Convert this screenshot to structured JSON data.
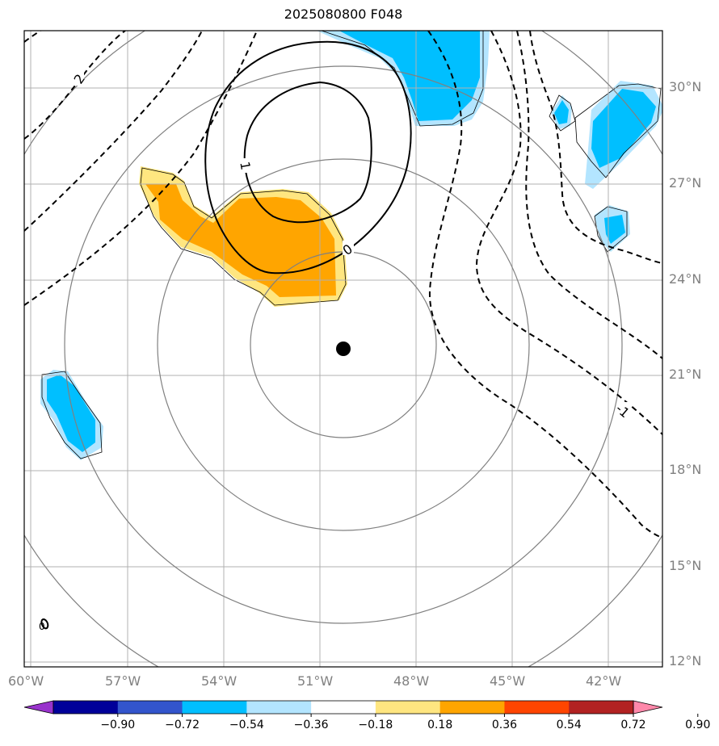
{
  "title": "2025080800 F048",
  "lon_ticks": [
    "60°W",
    "57°W",
    "54°W",
    "51°W",
    "48°W",
    "45°W",
    "42°W"
  ],
  "lat_ticks": [
    "30°N",
    "27°N",
    "24°N",
    "21°N",
    "18°N",
    "15°N",
    "12°N"
  ],
  "contour_labels": [
    "2",
    "1",
    "0",
    "-1",
    "0"
  ],
  "colorbar": {
    "levels": [
      "−0.90",
      "−0.72",
      "−0.54",
      "−0.36",
      "−0.18",
      "0.18",
      "0.36",
      "0.54",
      "0.72",
      "0.90"
    ],
    "colors": [
      "#9933cc",
      "#000099",
      "#3355cc",
      "#00bfff",
      "#b3e5ff",
      "#ffffff",
      "#ffe680",
      "#ffa500",
      "#ff4500",
      "#b22222",
      "#ff88aa"
    ]
  },
  "center_marker": {
    "lon": -50.2,
    "lat": 21.8
  }
}
